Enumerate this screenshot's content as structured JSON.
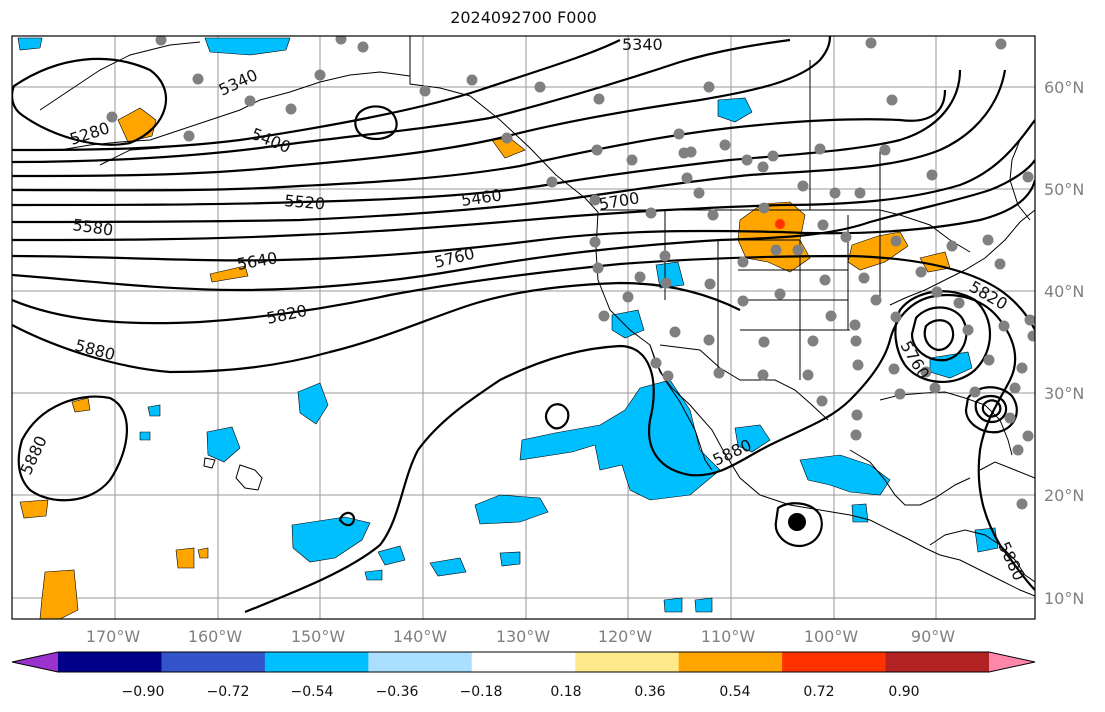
{
  "title": "2024092700 F000",
  "map": {
    "lat_labels": [
      "60°N",
      "50°N",
      "40°N",
      "30°N",
      "20°N",
      "10°N"
    ],
    "lon_labels": [
      "170°W",
      "160°W",
      "150°W",
      "140°W",
      "130°W",
      "120°W",
      "110°W",
      "100°W",
      "90°W"
    ],
    "contour_labels": [
      "5340",
      "5280",
      "5340",
      "5400",
      "5460",
      "5520",
      "5580",
      "5640",
      "5700",
      "5760",
      "5820",
      "5880",
      "5880",
      "5820",
      "5760",
      "5880",
      "5880"
    ]
  },
  "colorbar": {
    "colors": [
      "#9933cc",
      "#00008b",
      "#3355cc",
      "#00bfff",
      "#aadfff",
      "#ffffff",
      "#ffe98a",
      "#ffa500",
      "#ff3300",
      "#b22222",
      "#ff88aa"
    ],
    "tick_labels": [
      "−0.90",
      "−0.72",
      "−0.54",
      "−0.36",
      "−0.18",
      "0.18",
      "0.36",
      "0.54",
      "0.72",
      "0.90"
    ]
  },
  "colors": {
    "negative_fill": "#00bfff",
    "positive_fill": "#ffa500",
    "positive_strong": "#ff3300",
    "station": "#808080"
  }
}
